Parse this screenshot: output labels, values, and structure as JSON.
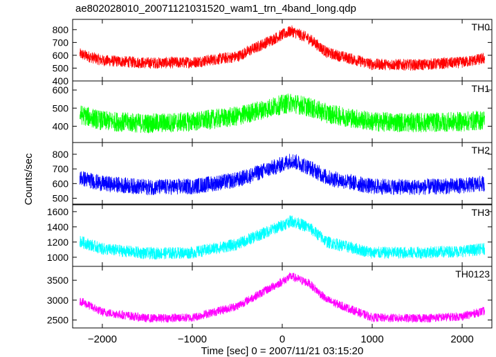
{
  "chart_data": {
    "type": "line",
    "title": "ae802028010_20071121031520_wam1_trn_4band_long.qdp",
    "xlabel": "Time [sec] 0 = 2007/11/21 03:15:20",
    "ylabel": "Counts/sec",
    "xlim": [
      -2330,
      2330
    ],
    "x_ticks": [
      -2000,
      -1000,
      0,
      1000,
      2000
    ],
    "x_tick_labels": [
      "−2000",
      "−1000",
      "0",
      "1000",
      "2000"
    ],
    "x_range": [
      -2250,
      2250
    ],
    "grid": false,
    "panels": [
      {
        "name": "TH0",
        "color": "#ff0000",
        "ylim": [
          400,
          880
        ],
        "y_ticks": [
          400,
          500,
          600,
          700,
          800
        ],
        "profile": {
          "x": [
            -2250,
            -2000,
            -1500,
            -1000,
            -500,
            0,
            100,
            300,
            500,
            1000,
            1500,
            2000,
            2250
          ],
          "y": [
            610,
            560,
            540,
            545,
            590,
            760,
            790,
            730,
            620,
            530,
            525,
            545,
            575
          ]
        },
        "noise_band": 90
      },
      {
        "name": "TH1",
        "color": "#00ff00",
        "ylim": [
          310,
          650
        ],
        "y_ticks": [
          400,
          500,
          600
        ],
        "profile": {
          "x": [
            -2250,
            -2000,
            -1500,
            -1000,
            -500,
            0,
            100,
            300,
            500,
            1000,
            1500,
            2000,
            2250
          ],
          "y": [
            465,
            430,
            415,
            425,
            455,
            520,
            530,
            505,
            470,
            425,
            420,
            425,
            435
          ]
        },
        "noise_band": 110
      },
      {
        "name": "TH2",
        "color": "#0000ff",
        "ylim": [
          460,
          880
        ],
        "y_ticks": [
          500,
          600,
          700,
          800
        ],
        "profile": {
          "x": [
            -2250,
            -2000,
            -1500,
            -1000,
            -500,
            0,
            100,
            300,
            500,
            1000,
            1500,
            2000,
            2250
          ],
          "y": [
            640,
            600,
            575,
            580,
            625,
            730,
            760,
            710,
            640,
            580,
            575,
            585,
            600
          ]
        },
        "noise_band": 110
      },
      {
        "name": "TH3",
        "color": "#00ffff",
        "ylim": [
          880,
          1690
        ],
        "y_ticks": [
          1000,
          1200,
          1400,
          1600
        ],
        "profile": {
          "x": [
            -2250,
            -2000,
            -1500,
            -1000,
            -500,
            0,
            100,
            300,
            500,
            1000,
            1500,
            2000,
            2250
          ],
          "y": [
            1210,
            1110,
            1050,
            1060,
            1170,
            1420,
            1480,
            1390,
            1200,
            1060,
            1060,
            1080,
            1110
          ]
        },
        "noise_band": 160
      },
      {
        "name": "TH0123",
        "color": "#ff00ff",
        "ylim": [
          2300,
          3850
        ],
        "y_ticks": [
          2500,
          3000,
          3500
        ],
        "profile": {
          "x": [
            -2250,
            -2000,
            -1500,
            -1000,
            -500,
            0,
            100,
            300,
            500,
            1000,
            1500,
            2000,
            2250
          ],
          "y": [
            2980,
            2700,
            2540,
            2560,
            2850,
            3470,
            3600,
            3420,
            3000,
            2560,
            2540,
            2590,
            2730
          ]
        },
        "noise_band": 220
      }
    ]
  }
}
